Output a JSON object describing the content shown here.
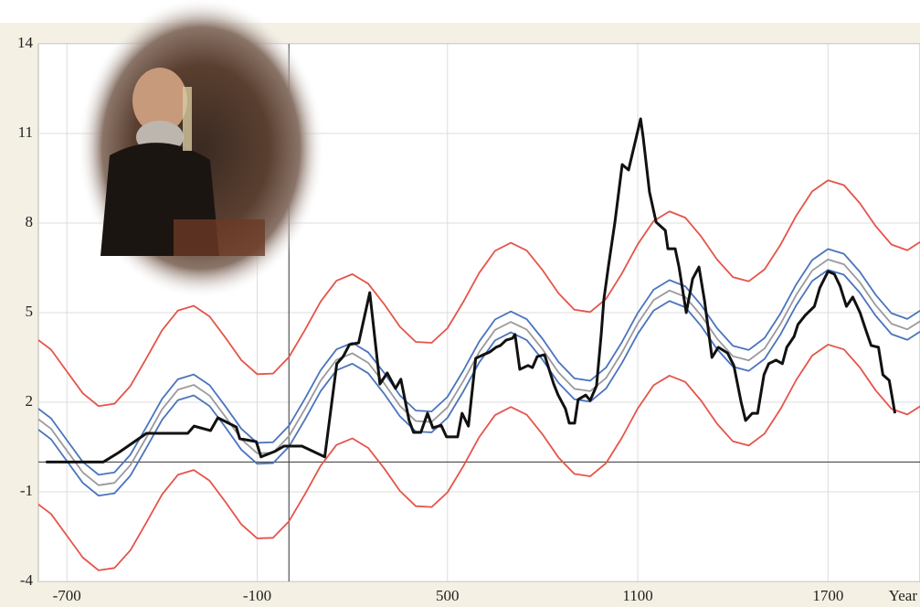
{
  "chart_data": {
    "type": "line",
    "x_label": "Year",
    "xlim": [
      -790,
      1990
    ],
    "ylim": [
      -4,
      14
    ],
    "xticks": [
      -700,
      -100,
      500,
      1100,
      1700
    ],
    "yticks": [
      -4,
      -1,
      2,
      5,
      8,
      11,
      14
    ],
    "grid": true,
    "axis_cross": [
      0,
      0
    ],
    "x": [
      -800,
      -750,
      -700,
      -650,
      -600,
      -550,
      -500,
      -450,
      -400,
      -350,
      -300,
      -250,
      -200,
      -150,
      -100,
      -50,
      0,
      50,
      100,
      150,
      200,
      250,
      300,
      350,
      400,
      450,
      500,
      550,
      600,
      650,
      700,
      750,
      800,
      850,
      900,
      950,
      1000,
      1050,
      1100,
      1150,
      1200,
      1250,
      1300,
      1350,
      1400,
      1450,
      1500,
      1550,
      1600,
      1650,
      1700,
      1750,
      1800,
      1850,
      1900,
      1950,
      2000
    ],
    "series": [
      {
        "color": "#e5544b",
        "values": [
          4.16,
          3.76,
          3.03,
          2.3,
          1.87,
          1.95,
          2.54,
          3.46,
          4.41,
          5.07,
          5.23,
          4.87,
          4.16,
          3.41,
          2.94,
          2.96,
          3.51,
          4.41,
          5.37,
          6.07,
          6.29,
          5.97,
          5.29,
          4.53,
          4.02,
          3.99,
          4.48,
          5.36,
          6.33,
          7.07,
          7.34,
          7.08,
          6.42,
          5.65,
          5.1,
          5.02,
          5.46,
          6.31,
          7.29,
          8.07,
          8.39,
          8.18,
          7.55,
          6.78,
          6.19,
          6.05,
          6.45,
          7.27,
          8.25,
          9.06,
          9.43,
          9.27,
          8.67,
          7.9,
          7.28,
          7.09,
          7.43
        ]
      },
      {
        "color": "#4a74bd",
        "values": [
          1.86,
          1.46,
          0.73,
          0,
          -0.43,
          -0.35,
          0.24,
          1.16,
          2.11,
          2.77,
          2.93,
          2.57,
          1.86,
          1.11,
          0.64,
          0.66,
          1.21,
          2.11,
          3.07,
          3.77,
          3.99,
          3.67,
          2.99,
          2.23,
          1.72,
          1.69,
          2.18,
          3.06,
          4.03,
          4.77,
          5.04,
          4.78,
          4.12,
          3.35,
          2.8,
          2.72,
          3.16,
          4.01,
          4.99,
          5.77,
          6.09,
          5.88,
          5.25,
          4.48,
          3.89,
          3.75,
          4.15,
          4.97,
          5.95,
          6.76,
          7.13,
          6.97,
          6.37,
          5.6,
          4.98,
          4.79,
          5.13
        ]
      },
      {
        "color": "#9a9a9a",
        "values": [
          1.51,
          1.11,
          0.38,
          -0.35,
          -0.78,
          -0.7,
          -0.11,
          0.81,
          1.76,
          2.42,
          2.58,
          2.22,
          1.51,
          0.76,
          0.29,
          0.31,
          0.86,
          1.76,
          2.72,
          3.42,
          3.64,
          3.32,
          2.64,
          1.88,
          1.37,
          1.34,
          1.83,
          2.71,
          3.68,
          4.42,
          4.69,
          4.43,
          3.77,
          3.0,
          2.45,
          2.37,
          2.81,
          3.66,
          4.64,
          5.42,
          5.74,
          5.53,
          4.9,
          4.13,
          3.54,
          3.4,
          3.8,
          4.62,
          5.6,
          6.41,
          6.78,
          6.62,
          6.02,
          5.25,
          4.63,
          4.44,
          4.78
        ]
      },
      {
        "color": "#4a74bd",
        "values": [
          1.16,
          0.76,
          0.03,
          -0.7,
          -1.13,
          -1.05,
          -0.46,
          0.46,
          1.41,
          2.07,
          2.23,
          1.87,
          1.16,
          0.41,
          -0.06,
          -0.04,
          0.51,
          1.41,
          2.37,
          3.07,
          3.29,
          2.97,
          2.29,
          1.53,
          1.02,
          0.99,
          1.48,
          2.36,
          3.33,
          4.07,
          4.34,
          4.08,
          3.42,
          2.65,
          2.1,
          2.02,
          2.46,
          3.31,
          4.29,
          5.07,
          5.39,
          5.18,
          4.55,
          3.78,
          3.19,
          3.05,
          3.45,
          4.27,
          5.25,
          6.06,
          6.43,
          6.27,
          5.67,
          4.9,
          4.28,
          4.09,
          4.43
        ]
      },
      {
        "color": "#e5544b",
        "values": [
          -1.34,
          -1.74,
          -2.47,
          -3.2,
          -3.63,
          -3.55,
          -2.96,
          -2.04,
          -1.09,
          -0.43,
          -0.27,
          -0.63,
          -1.34,
          -2.09,
          -2.56,
          -2.54,
          -1.99,
          -1.09,
          -0.13,
          0.57,
          0.79,
          0.47,
          -0.21,
          -0.97,
          -1.48,
          -1.51,
          -1.02,
          -0.14,
          0.83,
          1.57,
          1.84,
          1.58,
          0.92,
          0.15,
          -0.4,
          -0.48,
          -0.04,
          0.81,
          1.79,
          2.57,
          2.89,
          2.68,
          2.05,
          1.28,
          0.69,
          0.55,
          0.95,
          1.77,
          2.75,
          3.56,
          3.93,
          3.77,
          3.17,
          2.4,
          1.78,
          1.59,
          1.93
        ]
      },
      {
        "color": "#111111",
        "x": [
          -766,
          -585,
          -536,
          -449,
          -319,
          -299,
          -247,
          -224,
          -166,
          -155,
          -103,
          -88,
          -45,
          -16,
          41,
          113,
          151,
          171,
          191,
          220,
          255,
          287,
          310,
          336,
          353,
          379,
          393,
          416,
          437,
          454,
          480,
          497,
          532,
          546,
          566,
          589,
          613,
          633,
          653,
          667,
          685,
          705,
          713,
          728,
          754,
          768,
          783,
          806,
          835,
          849,
          872,
          884,
          901,
          912,
          936,
          950,
          970,
          985,
          993,
          1008,
          1028,
          1051,
          1071,
          1109,
          1117,
          1137,
          1158,
          1187,
          1195,
          1218,
          1230,
          1253,
          1273,
          1293,
          1311,
          1334,
          1354,
          1383,
          1403,
          1426,
          1440,
          1461,
          1478,
          1498,
          1513,
          1536,
          1556,
          1570,
          1593,
          1605,
          1628,
          1657,
          1674,
          1700,
          1720,
          1738,
          1758,
          1778,
          1801,
          1821,
          1836,
          1859,
          1873,
          1893,
          1911
        ],
        "values": [
          0,
          0,
          0.32,
          0.96,
          0.96,
          1.2,
          1.05,
          1.48,
          1.17,
          0.78,
          0.68,
          0.17,
          0.35,
          0.53,
          0.53,
          0.17,
          3.29,
          3.53,
          3.93,
          3.99,
          5.67,
          2.61,
          2.98,
          2.46,
          2.77,
          1.39,
          0.99,
          0.99,
          1.63,
          1.14,
          1.23,
          0.84,
          0.84,
          1.63,
          1.2,
          3.47,
          3.59,
          3.68,
          3.84,
          3.9,
          4.08,
          4.14,
          4.27,
          3.1,
          3.23,
          3.16,
          3.53,
          3.59,
          2.61,
          2.24,
          1.78,
          1.3,
          1.3,
          2.09,
          2.24,
          2.06,
          2.55,
          4.3,
          5.43,
          6.59,
          8.03,
          9.96,
          9.78,
          11.49,
          10.88,
          9.04,
          8.03,
          7.75,
          7.14,
          7.14,
          6.53,
          5.0,
          6.13,
          6.53,
          5.37,
          3.5,
          3.84,
          3.65,
          3.23,
          2.0,
          1.39,
          1.63,
          1.63,
          2.92,
          3.29,
          3.41,
          3.29,
          3.84,
          4.2,
          4.6,
          4.91,
          5.21,
          5.83,
          6.38,
          6.29,
          5.89,
          5.21,
          5.52,
          5.0,
          4.36,
          3.9,
          3.84,
          2.92,
          2.73,
          1.63
        ]
      }
    ]
  }
}
